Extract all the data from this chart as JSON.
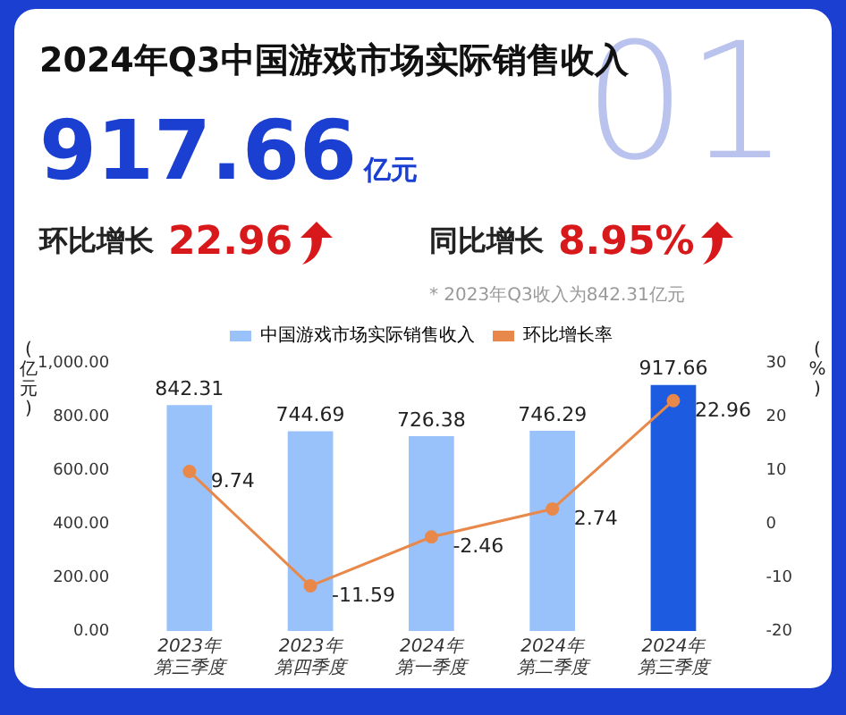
{
  "chart_data": {
    "type": "bar",
    "title": "2024年Q3中国游戏市场实际销售收入",
    "annotations": [
      "01",
      "917.66",
      "亿元",
      "环比增长",
      "22.96",
      "同比增长",
      "8.95%",
      "* 2023年Q3收入为842.31亿元"
    ],
    "categories": [
      "2023年第三季度",
      "2023年第四季度",
      "2024年第一季度",
      "2024年第二季度",
      "2024年第三季度"
    ],
    "series": [
      {
        "name": "中国游戏市场实际销售收入",
        "color": "#99c2fb",
        "colors": [
          "#99c2fb",
          "#99c2fb",
          "#99c2fb",
          "#99c2fb",
          "#1d5ce0"
        ],
        "values": [
          842.31,
          744.69,
          726.38,
          746.29,
          917.66
        ]
      },
      {
        "name": "环比增长率",
        "type": "line",
        "axis": "y2",
        "color": "#e8884a",
        "values": [
          9.74,
          -11.59,
          -2.46,
          2.74,
          22.96
        ]
      }
    ],
    "ylabel": "(亿元)",
    "y2label": "(%)",
    "ylim": [
      0,
      1000
    ],
    "yticks": [
      {
        "value": 0,
        "label": "0.00"
      },
      {
        "value": 200,
        "label": "200.00"
      },
      {
        "value": 400,
        "label": "400.00"
      },
      {
        "value": 600,
        "label": "600.00"
      },
      {
        "value": 800,
        "label": "800.00"
      },
      {
        "value": 1000,
        "label": "1,000.00"
      }
    ],
    "y2lim": [
      -20,
      30
    ],
    "y2ticks": [
      -20,
      -10,
      0,
      10,
      20,
      30
    ],
    "data_labels": true,
    "legend": "top",
    "marker": "circle",
    "line_style": "solid",
    "grid": false
  }
}
